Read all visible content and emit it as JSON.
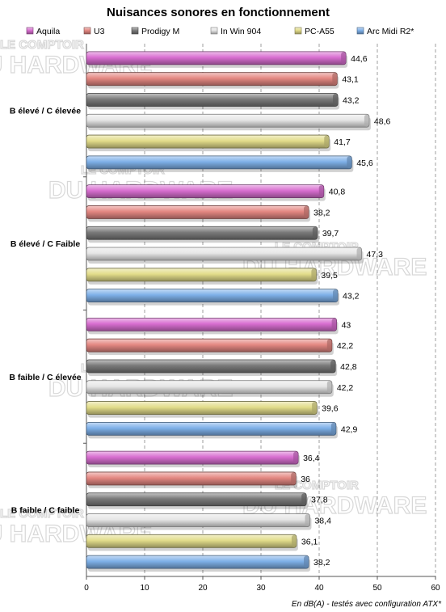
{
  "chart_data": {
    "type": "bar",
    "orientation": "horizontal",
    "title": "Nuisances sonores en fonctionnement",
    "xlabel": "En dB(A) - testés avec configuration ATX*",
    "xlim": [
      0,
      60
    ],
    "xticks": [
      0,
      10,
      20,
      30,
      40,
      50,
      60
    ],
    "grid": "vertical-dashed",
    "legend_position": "top",
    "categories": [
      "B élevé / C élevée",
      "B élevé / C Faible",
      "B faible / C élevée",
      "B faible / C faible"
    ],
    "series": [
      {
        "name": "Aquila",
        "color": "#d86ed0",
        "values": [
          44.6,
          40.8,
          43,
          36.4
        ],
        "labels": [
          "44,6",
          "40,8",
          "43",
          "36,4"
        ]
      },
      {
        "name": "U3",
        "color": "#e48882",
        "values": [
          43.1,
          38.2,
          42.2,
          36
        ],
        "labels": [
          "43,1",
          "38,2",
          "42,2",
          "36"
        ]
      },
      {
        "name": "Prodigy M",
        "color": "#7a7a7a",
        "values": [
          43.2,
          39.7,
          42.8,
          37.8
        ],
        "labels": [
          "43,2",
          "39,7",
          "42,8",
          "37,8"
        ]
      },
      {
        "name": "In Win 904",
        "color": "#e6e6e6",
        "values": [
          48.6,
          47.3,
          42.2,
          38.4
        ],
        "labels": [
          "48,6",
          "47,3",
          "42,2",
          "38,4"
        ]
      },
      {
        "name": "PC-A55",
        "color": "#e2dc8a",
        "values": [
          41.7,
          39.5,
          39.6,
          36.1
        ],
        "labels": [
          "41,7",
          "39,5",
          "39,6",
          "36,1"
        ]
      },
      {
        "name": "Arc Midi R2*",
        "color": "#7eb0e8",
        "values": [
          45.6,
          43.2,
          42.9,
          38.2
        ],
        "labels": [
          "45,6",
          "43,2",
          "42,9",
          "38,2"
        ]
      }
    ]
  },
  "watermark": {
    "line1": "LE COMPTOIR",
    "line2": "DU HARDWARE"
  }
}
